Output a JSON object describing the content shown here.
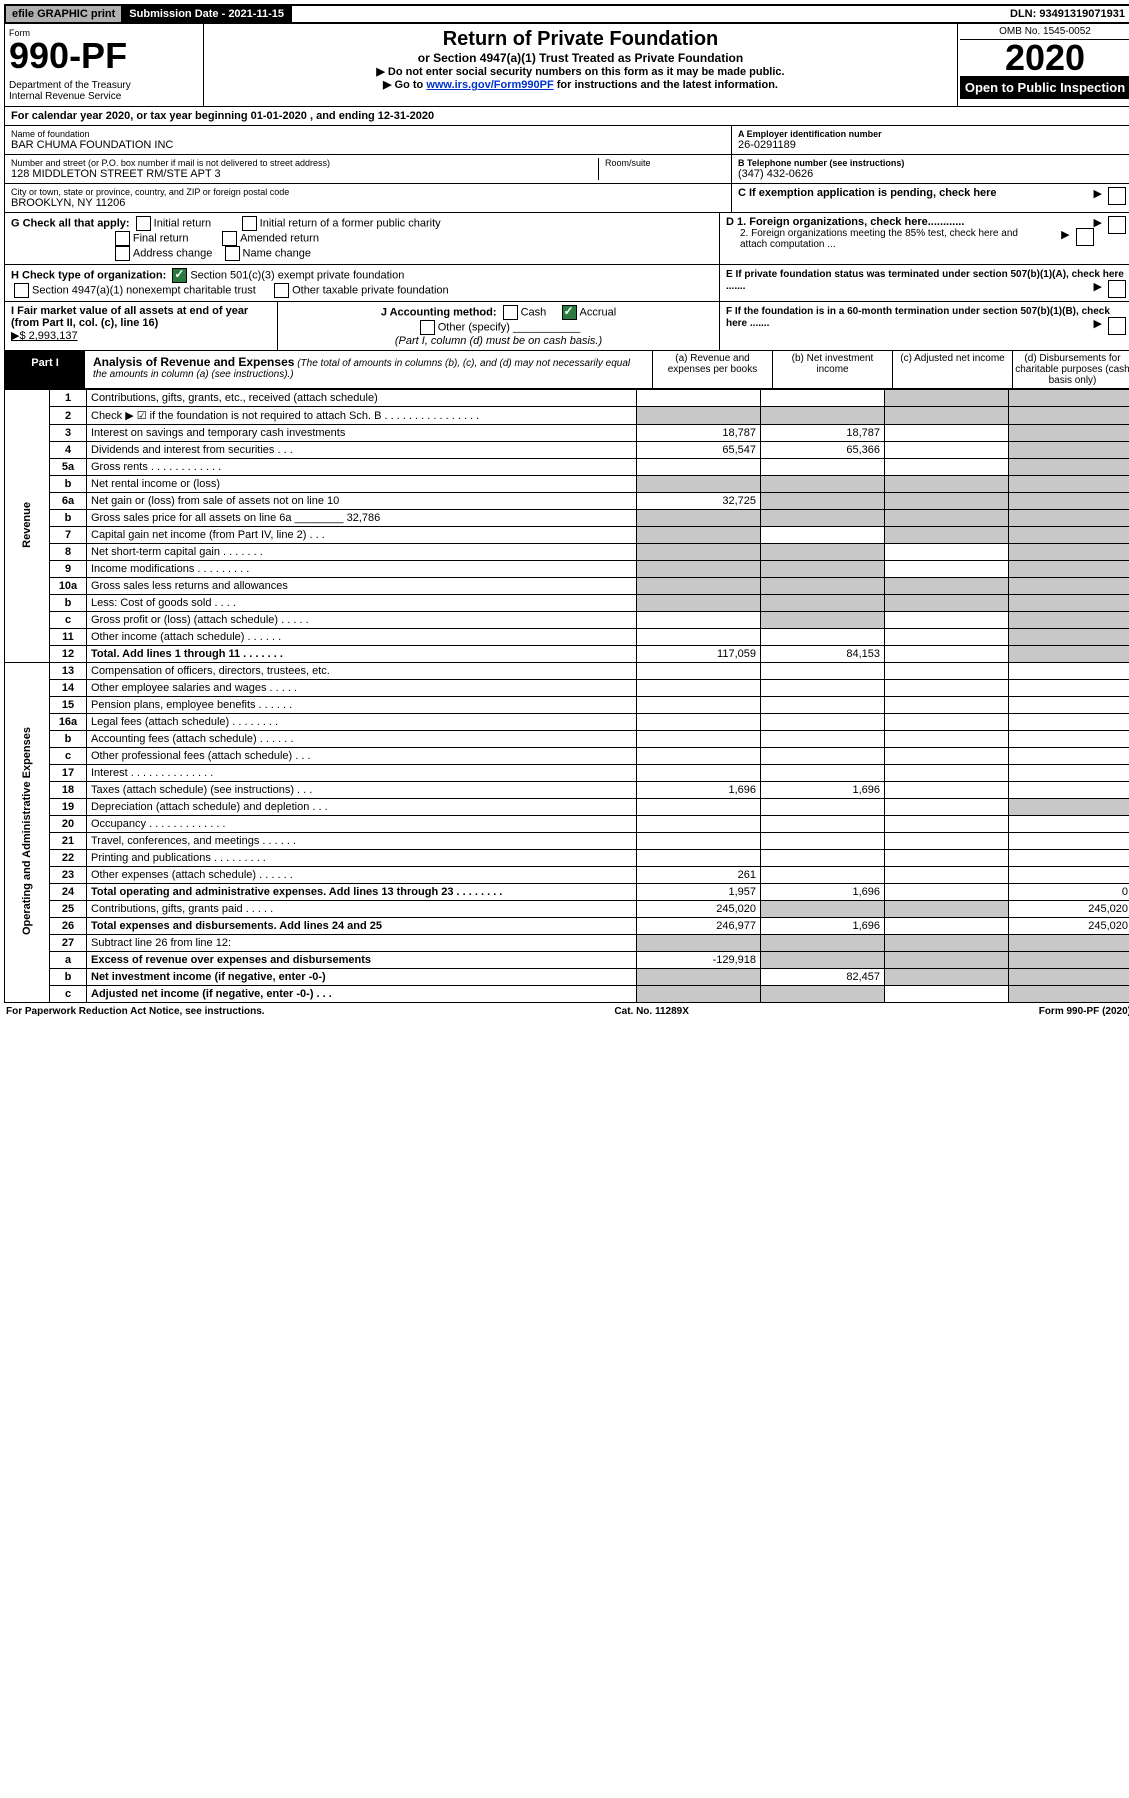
{
  "topbar": {
    "efile": "efile GRAPHIC print",
    "submission": "Submission Date - 2021-11-15",
    "dln": "DLN: 93491319071931"
  },
  "header": {
    "form_label": "Form",
    "form_num": "990-PF",
    "dept": "Department of the Treasury\nInternal Revenue Service",
    "title": "Return of Private Foundation",
    "subtitle": "or Section 4947(a)(1) Trust Treated as Private Foundation",
    "instr1": "▶ Do not enter social security numbers on this form as it may be made public.",
    "instr2_pre": "▶ Go to ",
    "instr2_link": "www.irs.gov/Form990PF",
    "instr2_post": " for instructions and the latest information.",
    "omb": "OMB No. 1545-0052",
    "year": "2020",
    "open": "Open to Public Inspection"
  },
  "cal_year": "For calendar year 2020, or tax year beginning 01-01-2020                    , and ending 12-31-2020",
  "info": {
    "name_label": "Name of foundation",
    "name": "BAR CHUMA FOUNDATION INC",
    "addr_label": "Number and street (or P.O. box number if mail is not delivered to street address)",
    "addr": "128 MIDDLETON STREET RM/STE APT 3",
    "room_label": "Room/suite",
    "city_label": "City or town, state or province, country, and ZIP or foreign postal code",
    "city": "BROOKLYN, NY  11206",
    "ein_label": "A Employer identification number",
    "ein": "26-0291189",
    "phone_label": "B Telephone number (see instructions)",
    "phone": "(347) 432-0626",
    "c_label": "C If exemption application is pending, check here",
    "d1": "D 1. Foreign organizations, check here............",
    "d2": "   2. Foreign organizations meeting the 85% test, check here and attach computation ...",
    "e_label": "E  If private foundation status was terminated under section 507(b)(1)(A), check here .......",
    "f_label": "F  If the foundation is in a 60-month termination under section 507(b)(1)(B), check here ......."
  },
  "g": {
    "label": "G Check all that apply:",
    "opts": [
      "Initial return",
      "Final return",
      "Address change",
      "Initial return of a former public charity",
      "Amended return",
      "Name change"
    ]
  },
  "h": {
    "label": "H Check type of organization:",
    "opt1": "Section 501(c)(3) exempt private foundation",
    "opt2": "Section 4947(a)(1) nonexempt charitable trust",
    "opt3": "Other taxable private foundation"
  },
  "i": {
    "label": "I Fair market value of all assets at end of year (from Part II, col. (c), line 16)",
    "val": "▶$  2,993,137"
  },
  "j": {
    "label": "J Accounting method:",
    "cash": "Cash",
    "accrual": "Accrual",
    "other": "Other (specify)",
    "note": "(Part I, column (d) must be on cash basis.)"
  },
  "part1": {
    "tag": "Part I",
    "title": "Analysis of Revenue and Expenses",
    "note": "(The total of amounts in columns (b), (c), and (d) may not necessarily equal the amounts in column (a) (see instructions).)",
    "col_a": "(a)  Revenue and expenses per books",
    "col_b": "(b)  Net investment income",
    "col_c": "(c)  Adjusted net income",
    "col_d": "(d)  Disbursements for charitable purposes (cash basis only)"
  },
  "side_rev": "Revenue",
  "side_exp": "Operating and Administrative Expenses",
  "rows": [
    {
      "n": "1",
      "d": "Contributions, gifts, grants, etc., received (attach schedule)",
      "a": "",
      "b": "",
      "c": "grey",
      "dcol": "grey"
    },
    {
      "n": "2",
      "d": "Check ▶ ☑ if the foundation is not required to attach Sch. B  .  .  .  .  .  .  .  .  .  .  .  .  .  .  .  .",
      "a": "grey",
      "b": "grey",
      "c": "grey",
      "dcol": "grey"
    },
    {
      "n": "3",
      "d": "Interest on savings and temporary cash investments",
      "a": "18,787",
      "b": "18,787",
      "c": "",
      "dcol": "grey"
    },
    {
      "n": "4",
      "d": "Dividends and interest from securities  .  .  .",
      "a": "65,547",
      "b": "65,366",
      "c": "",
      "dcol": "grey"
    },
    {
      "n": "5a",
      "d": "Gross rents  .  .  .  .  .  .  .  .  .  .  .  .",
      "a": "",
      "b": "",
      "c": "",
      "dcol": "grey"
    },
    {
      "n": "b",
      "d": "Net rental income or (loss)  ",
      "a": "grey",
      "b": "grey",
      "c": "grey",
      "dcol": "grey"
    },
    {
      "n": "6a",
      "d": "Net gain or (loss) from sale of assets not on line 10",
      "a": "32,725",
      "b": "grey",
      "c": "grey",
      "dcol": "grey"
    },
    {
      "n": "b",
      "d": "Gross sales price for all assets on line 6a ________ 32,786",
      "a": "grey",
      "b": "grey",
      "c": "grey",
      "dcol": "grey"
    },
    {
      "n": "7",
      "d": "Capital gain net income (from Part IV, line 2)  .  .  .",
      "a": "grey",
      "b": "",
      "c": "grey",
      "dcol": "grey"
    },
    {
      "n": "8",
      "d": "Net short-term capital gain  .  .  .  .  .  .  .",
      "a": "grey",
      "b": "grey",
      "c": "",
      "dcol": "grey"
    },
    {
      "n": "9",
      "d": "Income modifications  .  .  .  .  .  .  .  .  .",
      "a": "grey",
      "b": "grey",
      "c": "",
      "dcol": "grey"
    },
    {
      "n": "10a",
      "d": "Gross sales less returns and allowances",
      "a": "grey",
      "b": "grey",
      "c": "grey",
      "dcol": "grey"
    },
    {
      "n": "b",
      "d": "Less: Cost of goods sold  .  .  .  .",
      "a": "grey",
      "b": "grey",
      "c": "grey",
      "dcol": "grey"
    },
    {
      "n": "c",
      "d": "Gross profit or (loss) (attach schedule)  .  .  .  .  .",
      "a": "",
      "b": "grey",
      "c": "",
      "dcol": "grey"
    },
    {
      "n": "11",
      "d": "Other income (attach schedule)  .  .  .  .  .  .",
      "a": "",
      "b": "",
      "c": "",
      "dcol": "grey"
    },
    {
      "n": "12",
      "d": "Total. Add lines 1 through 11  .  .  .  .  .  .  .",
      "a": "117,059",
      "b": "84,153",
      "c": "",
      "dcol": "grey",
      "bold": true
    },
    {
      "n": "13",
      "d": "Compensation of officers, directors, trustees, etc.",
      "a": "",
      "b": "",
      "c": "",
      "dcol": ""
    },
    {
      "n": "14",
      "d": "Other employee salaries and wages  .  .  .  .  .",
      "a": "",
      "b": "",
      "c": "",
      "dcol": ""
    },
    {
      "n": "15",
      "d": "Pension plans, employee benefits  .  .  .  .  .  .",
      "a": "",
      "b": "",
      "c": "",
      "dcol": ""
    },
    {
      "n": "16a",
      "d": "Legal fees (attach schedule)  .  .  .  .  .  .  .  .",
      "a": "",
      "b": "",
      "c": "",
      "dcol": ""
    },
    {
      "n": "b",
      "d": "Accounting fees (attach schedule)  .  .  .  .  .  .",
      "a": "",
      "b": "",
      "c": "",
      "dcol": ""
    },
    {
      "n": "c",
      "d": "Other professional fees (attach schedule)  .  .  .",
      "a": "",
      "b": "",
      "c": "",
      "dcol": ""
    },
    {
      "n": "17",
      "d": "Interest  .  .  .  .  .  .  .  .  .  .  .  .  .  .",
      "a": "",
      "b": "",
      "c": "",
      "dcol": ""
    },
    {
      "n": "18",
      "d": "Taxes (attach schedule) (see instructions)  .  .  .",
      "a": "1,696",
      "b": "1,696",
      "c": "",
      "dcol": ""
    },
    {
      "n": "19",
      "d": "Depreciation (attach schedule) and depletion  .  .  .",
      "a": "",
      "b": "",
      "c": "",
      "dcol": "grey"
    },
    {
      "n": "20",
      "d": "Occupancy  .  .  .  .  .  .  .  .  .  .  .  .  .",
      "a": "",
      "b": "",
      "c": "",
      "dcol": ""
    },
    {
      "n": "21",
      "d": "Travel, conferences, and meetings  .  .  .  .  .  .",
      "a": "",
      "b": "",
      "c": "",
      "dcol": ""
    },
    {
      "n": "22",
      "d": "Printing and publications  .  .  .  .  .  .  .  .  .",
      "a": "",
      "b": "",
      "c": "",
      "dcol": ""
    },
    {
      "n": "23",
      "d": "Other expenses (attach schedule)  .  .  .  .  .  .",
      "a": "261",
      "b": "",
      "c": "",
      "dcol": ""
    },
    {
      "n": "24",
      "d": "Total operating and administrative expenses. Add lines 13 through 23  .  .  .  .  .  .  .  .",
      "a": "1,957",
      "b": "1,696",
      "c": "",
      "dcol": "0",
      "bold": true
    },
    {
      "n": "25",
      "d": "Contributions, gifts, grants paid  .  .  .  .  .",
      "a": "245,020",
      "b": "grey",
      "c": "grey",
      "dcol": "245,020"
    },
    {
      "n": "26",
      "d": "Total expenses and disbursements. Add lines 24 and 25",
      "a": "246,977",
      "b": "1,696",
      "c": "",
      "dcol": "245,020",
      "bold": true
    },
    {
      "n": "27",
      "d": "Subtract line 26 from line 12:",
      "a": "grey",
      "b": "grey",
      "c": "grey",
      "dcol": "grey"
    },
    {
      "n": "a",
      "d": "Excess of revenue over expenses and disbursements",
      "a": "-129,918",
      "b": "grey",
      "c": "grey",
      "dcol": "grey",
      "bold": true
    },
    {
      "n": "b",
      "d": "Net investment income (if negative, enter -0-)",
      "a": "grey",
      "b": "82,457",
      "c": "grey",
      "dcol": "grey",
      "bold": true
    },
    {
      "n": "c",
      "d": "Adjusted net income (if negative, enter -0-)  .  .  .",
      "a": "grey",
      "b": "grey",
      "c": "",
      "dcol": "grey",
      "bold": true
    }
  ],
  "footer": {
    "left": "For Paperwork Reduction Act Notice, see instructions.",
    "mid": "Cat. No. 11289X",
    "right": "Form 990-PF (2020)"
  }
}
